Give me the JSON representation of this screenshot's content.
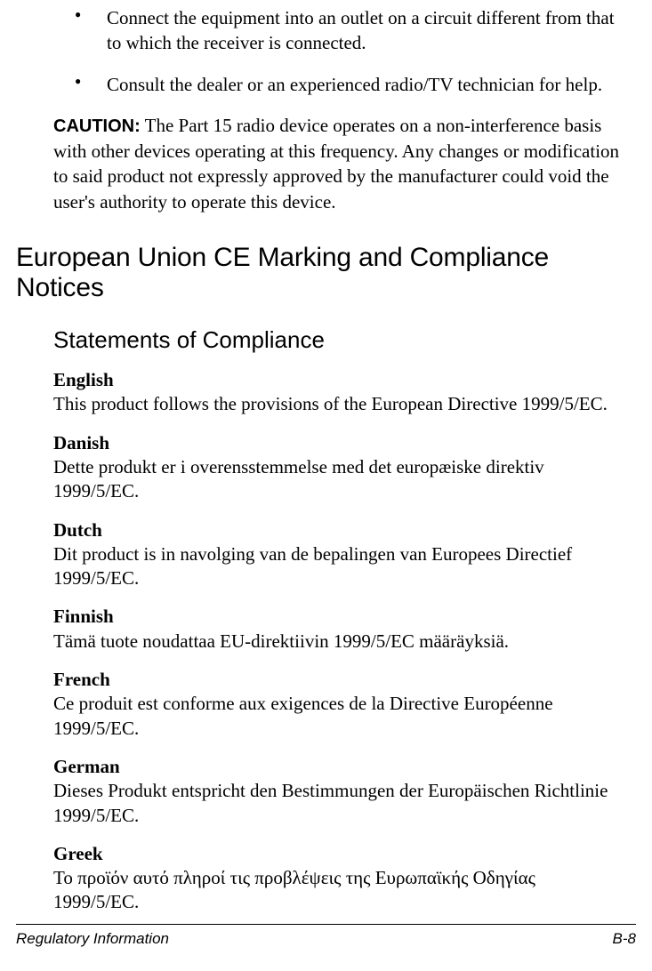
{
  "bullets": [
    "Connect the equipment into an outlet on a circuit different from that to which the receiver is connected.",
    "Consult the dealer or an experienced radio/TV technician for help."
  ],
  "caution": {
    "label": "CAUTION:",
    "text": " The Part 15 radio device operates on a non-interference basis with other devices operating at this frequency. Any changes or modification to said product not expressly approved by the manufacturer could void the user's authority to operate this device."
  },
  "heading": "European Union CE Marking and Compliance Notices",
  "subheading": "Statements of Compliance",
  "statements": [
    {
      "lang": "English",
      "text": "This product follows the provisions of the European Directive 1999/5/EC."
    },
    {
      "lang": "Danish",
      "text": "Dette produkt er i overensstemmelse med det europæiske direktiv 1999/5/EC."
    },
    {
      "lang": "Dutch",
      "text": "Dit product is in navolging van de bepalingen van Europees Directief 1999/5/EC."
    },
    {
      "lang": "Finnish",
      "text": "Tämä tuote noudattaa EU-direktiivin 1999/5/EC määräyksiä."
    },
    {
      "lang": "French",
      "text": "Ce produit est conforme aux exigences de la Directive Européenne 1999/5/EC."
    },
    {
      "lang": "German",
      "text": "Dieses Produkt entspricht den Bestimmungen der Europäischen Richtlinie 1999/5/EC."
    },
    {
      "lang": "Greek",
      "text": "To προϊόν αυτό πληροί τις προβλέψεις της Ευρωπαϊκής Οδηγίας 1999/5/EC."
    }
  ],
  "footer": {
    "left": "Regulatory Information",
    "right": "B-8"
  },
  "colors": {
    "text": "#000000",
    "background": "#ffffff",
    "rule": "#000000"
  }
}
